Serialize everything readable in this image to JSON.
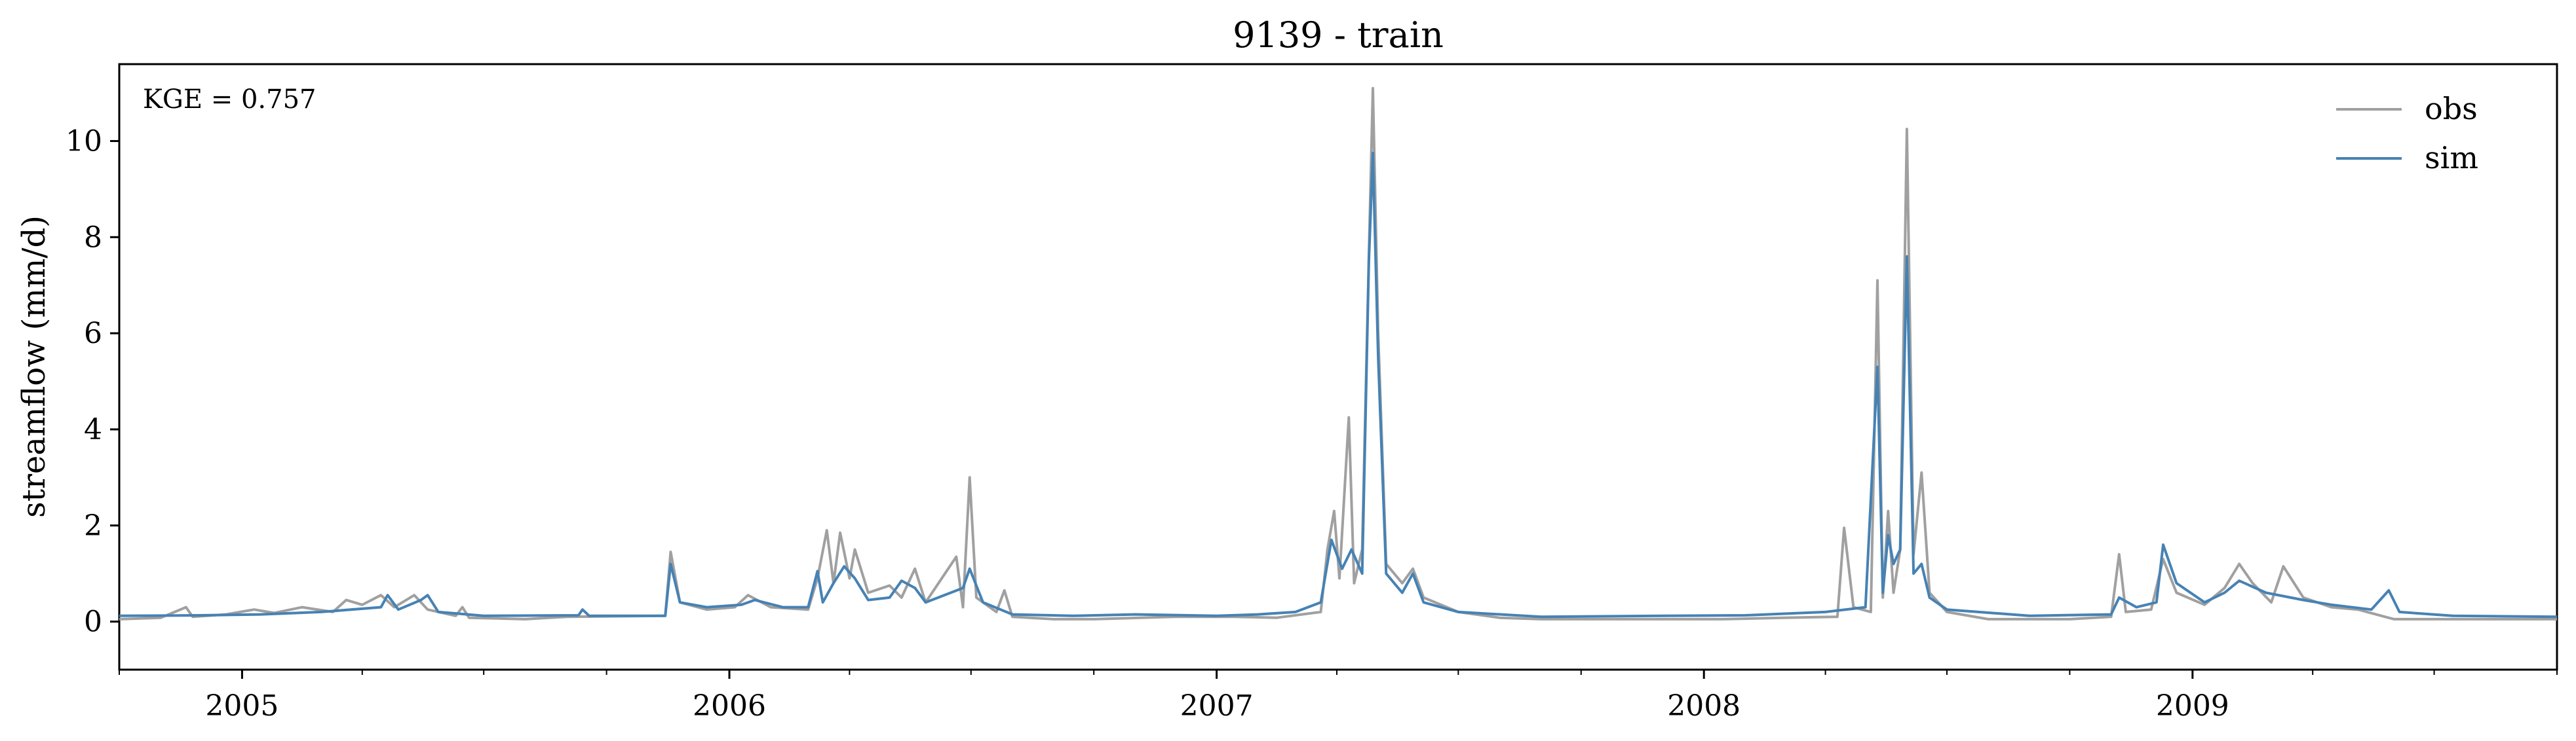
{
  "chart_data": {
    "type": "line",
    "title": "9139 - train",
    "xlabel": "",
    "ylabel": "streamflow (mm/d)",
    "annotation": "KGE = 0.757",
    "legend_position": "top-right",
    "grid": false,
    "xlim": [
      "2004-10-01",
      "2009-10-01"
    ],
    "ylim": [
      -1,
      11.6
    ],
    "x_ticks": [
      {
        "date": "2005-01-01",
        "label": "2005"
      },
      {
        "date": "2006-01-01",
        "label": "2006"
      },
      {
        "date": "2007-01-01",
        "label": "2007"
      },
      {
        "date": "2008-01-01",
        "label": "2008"
      },
      {
        "date": "2009-01-01",
        "label": "2009"
      }
    ],
    "y_ticks": [
      {
        "value": 0,
        "label": "0"
      },
      {
        "value": 2,
        "label": "2"
      },
      {
        "value": 4,
        "label": "4"
      },
      {
        "value": 6,
        "label": "6"
      },
      {
        "value": 8,
        "label": "8"
      },
      {
        "value": 10,
        "label": "10"
      }
    ],
    "series": [
      {
        "name": "obs",
        "color": "#a0a0a0",
        "points": [
          [
            "2004-10-01",
            0.05
          ],
          [
            "2004-11-01",
            0.08
          ],
          [
            "2004-11-20",
            0.3
          ],
          [
            "2004-11-25",
            0.1
          ],
          [
            "2004-12-20",
            0.15
          ],
          [
            "2005-01-10",
            0.25
          ],
          [
            "2005-01-25",
            0.18
          ],
          [
            "2005-02-15",
            0.3
          ],
          [
            "2005-03-10",
            0.2
          ],
          [
            "2005-03-20",
            0.45
          ],
          [
            "2005-04-01",
            0.35
          ],
          [
            "2005-04-15",
            0.55
          ],
          [
            "2005-04-25",
            0.3
          ],
          [
            "2005-05-10",
            0.55
          ],
          [
            "2005-05-20",
            0.25
          ],
          [
            "2005-06-10",
            0.12
          ],
          [
            "2005-06-15",
            0.3
          ],
          [
            "2005-06-20",
            0.08
          ],
          [
            "2005-08-01",
            0.05
          ],
          [
            "2005-09-01",
            0.1
          ],
          [
            "2005-11-14",
            0.12
          ],
          [
            "2005-11-18",
            1.45
          ],
          [
            "2005-11-25",
            0.4
          ],
          [
            "2005-12-15",
            0.25
          ],
          [
            "2006-01-05",
            0.3
          ],
          [
            "2006-01-15",
            0.55
          ],
          [
            "2006-02-01",
            0.3
          ],
          [
            "2006-03-01",
            0.25
          ],
          [
            "2006-03-08",
            0.9
          ],
          [
            "2006-03-15",
            1.9
          ],
          [
            "2006-03-20",
            0.8
          ],
          [
            "2006-03-25",
            1.85
          ],
          [
            "2006-04-01",
            0.9
          ],
          [
            "2006-04-05",
            1.5
          ],
          [
            "2006-04-15",
            0.6
          ],
          [
            "2006-05-01",
            0.75
          ],
          [
            "2006-05-10",
            0.5
          ],
          [
            "2006-05-20",
            1.1
          ],
          [
            "2006-05-28",
            0.4
          ],
          [
            "2006-06-20",
            1.35
          ],
          [
            "2006-06-25",
            0.3
          ],
          [
            "2006-06-30",
            3.0
          ],
          [
            "2006-07-05",
            0.5
          ],
          [
            "2006-07-20",
            0.2
          ],
          [
            "2006-07-26",
            0.65
          ],
          [
            "2006-08-01",
            0.1
          ],
          [
            "2006-09-01",
            0.05
          ],
          [
            "2006-10-01",
            0.05
          ],
          [
            "2006-12-01",
            0.1
          ],
          [
            "2007-01-15",
            0.1
          ],
          [
            "2007-02-15",
            0.08
          ],
          [
            "2007-03-20",
            0.2
          ],
          [
            "2007-03-25",
            1.5
          ],
          [
            "2007-03-30",
            2.3
          ],
          [
            "2007-04-03",
            0.9
          ],
          [
            "2007-04-10",
            4.25
          ],
          [
            "2007-04-14",
            0.8
          ],
          [
            "2007-04-20",
            1.5
          ],
          [
            "2007-04-25",
            7.6
          ],
          [
            "2007-04-28",
            11.1
          ],
          [
            "2007-05-02",
            6.0
          ],
          [
            "2007-05-08",
            1.2
          ],
          [
            "2007-05-20",
            0.8
          ],
          [
            "2007-05-28",
            1.1
          ],
          [
            "2007-06-05",
            0.5
          ],
          [
            "2007-07-01",
            0.2
          ],
          [
            "2007-08-01",
            0.08
          ],
          [
            "2007-09-01",
            0.05
          ],
          [
            "2007-10-01",
            0.05
          ],
          [
            "2007-12-01",
            0.05
          ],
          [
            "2008-01-15",
            0.05
          ],
          [
            "2008-03-01",
            0.08
          ],
          [
            "2008-04-10",
            0.1
          ],
          [
            "2008-04-15",
            1.95
          ],
          [
            "2008-04-22",
            0.3
          ],
          [
            "2008-05-05",
            0.2
          ],
          [
            "2008-05-10",
            7.1
          ],
          [
            "2008-05-14",
            0.5
          ],
          [
            "2008-05-18",
            2.3
          ],
          [
            "2008-05-22",
            0.6
          ],
          [
            "2008-05-27",
            1.5
          ],
          [
            "2008-06-01",
            10.25
          ],
          [
            "2008-06-06",
            1.4
          ],
          [
            "2008-06-12",
            3.1
          ],
          [
            "2008-06-18",
            0.6
          ],
          [
            "2008-07-01",
            0.2
          ],
          [
            "2008-08-01",
            0.05
          ],
          [
            "2008-10-01",
            0.05
          ],
          [
            "2008-11-01",
            0.1
          ],
          [
            "2008-11-07",
            1.4
          ],
          [
            "2008-11-12",
            0.2
          ],
          [
            "2008-12-01",
            0.25
          ],
          [
            "2008-12-10",
            1.3
          ],
          [
            "2008-12-20",
            0.6
          ],
          [
            "2009-01-10",
            0.35
          ],
          [
            "2009-01-25",
            0.7
          ],
          [
            "2009-02-05",
            1.2
          ],
          [
            "2009-02-15",
            0.8
          ],
          [
            "2009-03-01",
            0.4
          ],
          [
            "2009-03-10",
            1.15
          ],
          [
            "2009-03-25",
            0.5
          ],
          [
            "2009-04-15",
            0.3
          ],
          [
            "2009-05-05",
            0.25
          ],
          [
            "2009-05-25",
            0.1
          ],
          [
            "2009-06-01",
            0.05
          ],
          [
            "2009-10-01",
            0.05
          ]
        ]
      },
      {
        "name": "sim",
        "color": "#4682b4",
        "points": [
          [
            "2004-10-01",
            0.12
          ],
          [
            "2004-12-01",
            0.13
          ],
          [
            "2005-01-15",
            0.15
          ],
          [
            "2005-03-01",
            0.2
          ],
          [
            "2005-04-15",
            0.3
          ],
          [
            "2005-04-20",
            0.55
          ],
          [
            "2005-04-28",
            0.25
          ],
          [
            "2005-05-15",
            0.45
          ],
          [
            "2005-05-20",
            0.55
          ],
          [
            "2005-05-28",
            0.2
          ],
          [
            "2005-07-01",
            0.12
          ],
          [
            "2005-09-10",
            0.13
          ],
          [
            "2005-09-13",
            0.25
          ],
          [
            "2005-09-18",
            0.12
          ],
          [
            "2005-11-14",
            0.12
          ],
          [
            "2005-11-18",
            1.2
          ],
          [
            "2005-11-25",
            0.4
          ],
          [
            "2005-12-15",
            0.3
          ],
          [
            "2006-01-10",
            0.35
          ],
          [
            "2006-01-20",
            0.45
          ],
          [
            "2006-02-10",
            0.3
          ],
          [
            "2006-03-01",
            0.3
          ],
          [
            "2006-03-08",
            1.05
          ],
          [
            "2006-03-12",
            0.4
          ],
          [
            "2006-03-20",
            0.8
          ],
          [
            "2006-03-28",
            1.15
          ],
          [
            "2006-04-05",
            0.9
          ],
          [
            "2006-04-15",
            0.45
          ],
          [
            "2006-05-01",
            0.5
          ],
          [
            "2006-05-10",
            0.85
          ],
          [
            "2006-05-20",
            0.7
          ],
          [
            "2006-05-28",
            0.4
          ],
          [
            "2006-06-25",
            0.7
          ],
          [
            "2006-06-30",
            1.1
          ],
          [
            "2006-07-10",
            0.4
          ],
          [
            "2006-08-01",
            0.15
          ],
          [
            "2006-09-15",
            0.12
          ],
          [
            "2006-11-01",
            0.15
          ],
          [
            "2007-01-01",
            0.12
          ],
          [
            "2007-02-01",
            0.15
          ],
          [
            "2007-03-01",
            0.2
          ],
          [
            "2007-03-20",
            0.4
          ],
          [
            "2007-03-28",
            1.7
          ],
          [
            "2007-04-05",
            1.1
          ],
          [
            "2007-04-12",
            1.5
          ],
          [
            "2007-04-20",
            1.0
          ],
          [
            "2007-04-25",
            7.5
          ],
          [
            "2007-04-28",
            9.75
          ],
          [
            "2007-05-02",
            5.5
          ],
          [
            "2007-05-08",
            1.0
          ],
          [
            "2007-05-20",
            0.6
          ],
          [
            "2007-05-28",
            1.0
          ],
          [
            "2007-06-05",
            0.4
          ],
          [
            "2007-07-01",
            0.2
          ],
          [
            "2007-09-01",
            0.1
          ],
          [
            "2007-12-01",
            0.12
          ],
          [
            "2008-02-01",
            0.13
          ],
          [
            "2008-04-01",
            0.2
          ],
          [
            "2008-05-01",
            0.3
          ],
          [
            "2008-05-10",
            5.3
          ],
          [
            "2008-05-14",
            0.6
          ],
          [
            "2008-05-18",
            1.8
          ],
          [
            "2008-05-22",
            1.2
          ],
          [
            "2008-05-27",
            1.5
          ],
          [
            "2008-06-01",
            7.6
          ],
          [
            "2008-06-06",
            1.0
          ],
          [
            "2008-06-12",
            1.2
          ],
          [
            "2008-06-18",
            0.5
          ],
          [
            "2008-07-01",
            0.25
          ],
          [
            "2008-09-01",
            0.12
          ],
          [
            "2008-11-01",
            0.15
          ],
          [
            "2008-11-07",
            0.5
          ],
          [
            "2008-11-20",
            0.3
          ],
          [
            "2008-12-05",
            0.4
          ],
          [
            "2008-12-10",
            1.6
          ],
          [
            "2008-12-20",
            0.8
          ],
          [
            "2009-01-10",
            0.4
          ],
          [
            "2009-01-25",
            0.6
          ],
          [
            "2009-02-05",
            0.85
          ],
          [
            "2009-02-25",
            0.6
          ],
          [
            "2009-03-25",
            0.45
          ],
          [
            "2009-04-15",
            0.35
          ],
          [
            "2009-05-15",
            0.25
          ],
          [
            "2009-05-28",
            0.65
          ],
          [
            "2009-06-05",
            0.2
          ],
          [
            "2009-07-15",
            0.12
          ],
          [
            "2009-10-01",
            0.1
          ]
        ]
      }
    ]
  }
}
